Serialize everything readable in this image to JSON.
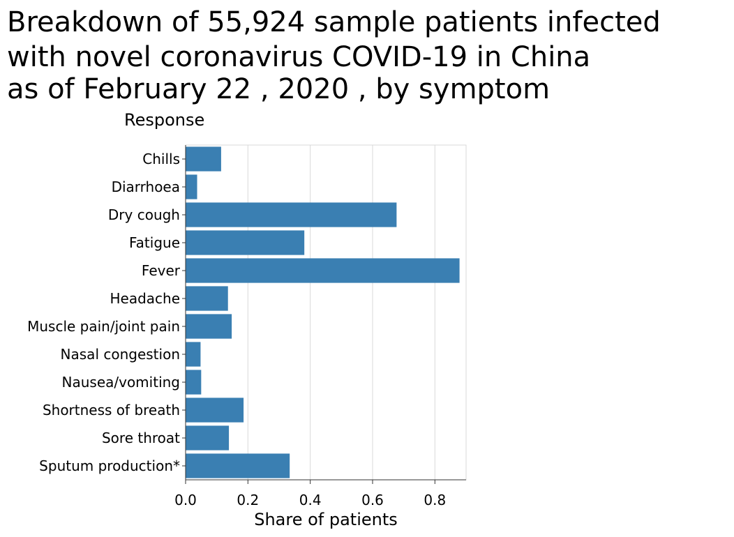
{
  "chart_data": {
    "type": "bar",
    "orientation": "horizontal",
    "title_lines": [
      "Breakdown of 55,924 sample patients infected",
      "with novel coronavirus COVID-19 in China",
      "as of February 22 , 2020 , by symptom"
    ],
    "ylabel": "Response",
    "xlabel": "Share of patients",
    "categories": [
      "Chills",
      "Diarrhoea",
      "Dry cough",
      "Fatigue",
      "Fever",
      "Headache",
      "Muscle pain/joint pain",
      "Nasal congestion",
      "Nausea/vomiting",
      "Shortness of breath",
      "Sore throat",
      "Sputum production*"
    ],
    "values": [
      0.114,
      0.037,
      0.677,
      0.381,
      0.879,
      0.136,
      0.148,
      0.048,
      0.05,
      0.186,
      0.139,
      0.334
    ],
    "xlim": [
      0,
      0.9
    ],
    "xticks": [
      0.0,
      0.2,
      0.4,
      0.6,
      0.8
    ],
    "xtick_labels": [
      "0.0",
      "0.2",
      "0.4",
      "0.6",
      "0.8"
    ],
    "grid": "vertical",
    "bar_color": "#3a7fb2"
  }
}
